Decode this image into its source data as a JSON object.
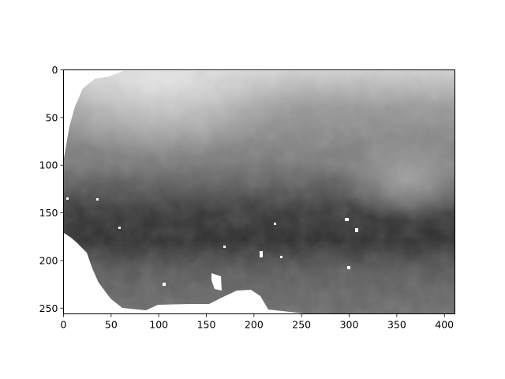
{
  "chart_data": {
    "type": "heatmap",
    "title": "",
    "xlabel": "",
    "ylabel": "",
    "colormap": "gray",
    "xlim": [
      0,
      411
    ],
    "ylim": [
      256,
      0
    ],
    "xticks": [
      0,
      50,
      100,
      150,
      200,
      250,
      300,
      350,
      400
    ],
    "yticks": [
      0,
      50,
      100,
      150,
      200,
      250
    ],
    "xtick_labels": [
      "0",
      "50",
      "100",
      "150",
      "200",
      "250",
      "300",
      "350",
      "400"
    ],
    "ytick_labels": [
      "0",
      "50",
      "100",
      "150",
      "200",
      "250"
    ],
    "no_data_color": "#ffffff",
    "grid": false,
    "colorbar": false
  }
}
